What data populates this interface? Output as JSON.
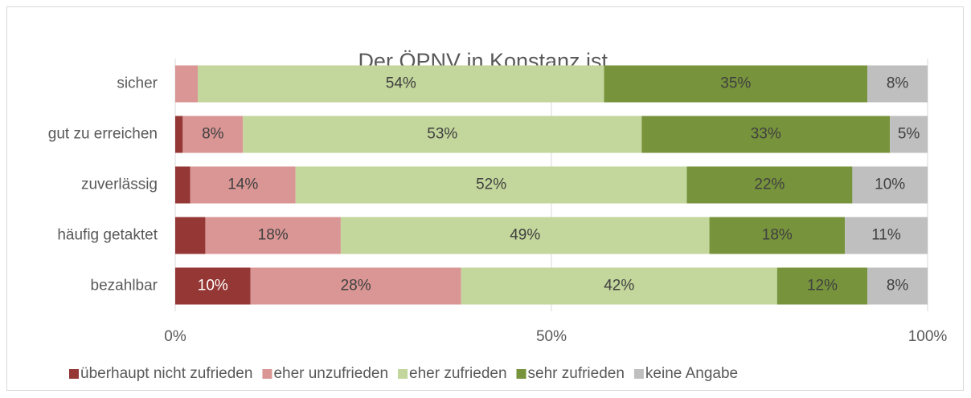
{
  "chart_data": {
    "type": "stacked-bar-horizontal",
    "title": "Der ÖPNV in Konstanz ist...",
    "categories": [
      "sicher",
      "gut zu erreichen",
      "zuverlässig",
      "häufig getaktet",
      "bezahlbar"
    ],
    "series": [
      {
        "name": "überhaupt nicht zufrieden",
        "color": "#953735",
        "values": [
          0,
          1,
          2,
          4,
          10
        ],
        "value_labels": [
          null,
          null,
          null,
          null,
          "10%"
        ]
      },
      {
        "name": "eher unzufrieden",
        "color": "#d99694",
        "values": [
          3,
          8,
          14,
          18,
          28
        ],
        "value_labels": [
          null,
          "8%",
          "14%",
          "18%",
          "28%"
        ]
      },
      {
        "name": "eher zufrieden",
        "color": "#c3d69b",
        "values": [
          54,
          53,
          52,
          49,
          42
        ],
        "value_labels": [
          "54%",
          "53%",
          "52%",
          "49%",
          "42%"
        ]
      },
      {
        "name": "sehr zufrieden",
        "color": "#77933c",
        "values": [
          35,
          33,
          22,
          18,
          12
        ],
        "value_labels": [
          "35%",
          "33%",
          "22%",
          "18%",
          "12%"
        ]
      },
      {
        "name": "keine Angabe",
        "color": "#bfbfbf",
        "values": [
          8,
          5,
          10,
          11,
          8
        ],
        "value_labels": [
          "8%",
          "5%",
          "10%",
          "11%",
          "8%"
        ]
      }
    ],
    "xlim": [
      0,
      100
    ],
    "xticks": [
      {
        "value": 0,
        "label": "0%"
      },
      {
        "value": 50,
        "label": "50%"
      },
      {
        "value": 100,
        "label": "100%"
      }
    ],
    "grid": true,
    "legend": "bottom"
  }
}
